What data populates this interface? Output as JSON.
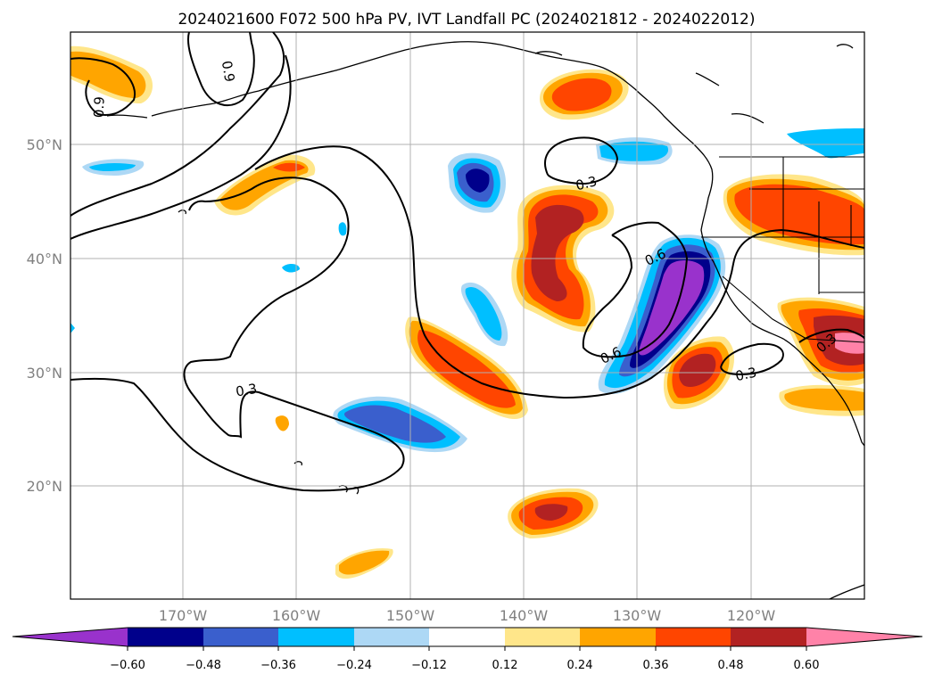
{
  "title": "2024021600 F072 500 hPa PV, IVT Landfall PC (2024021812 - 2024022012)",
  "map": {
    "longitude_labels": [
      "170°W",
      "160°W",
      "150°W",
      "140°W",
      "130°W",
      "120°W"
    ],
    "latitude_labels": [
      "50°N",
      "40°N",
      "30°N",
      "20°N"
    ],
    "contour_labels": [
      "0.9",
      "0.9",
      "0.3",
      "0.3",
      "0.6",
      "0.6",
      "0.3",
      "0.3"
    ]
  },
  "colorbar": {
    "ticks": [
      "−0.60",
      "−0.48",
      "−0.36",
      "−0.24",
      "−0.12",
      "0.12",
      "0.24",
      "0.36",
      "0.48",
      "0.60"
    ],
    "colors": [
      "#9932cc",
      "#00008b",
      "#3a5fcd",
      "#00bfff",
      "#add8f5",
      "#ffffff",
      "#ffe68a",
      "#ffa500",
      "#ff4500",
      "#b22222",
      "#ff82a8"
    ]
  },
  "colors": {
    "neg_strong": "#9932cc",
    "neg_dark": "#00008b",
    "neg_mid": "#3a5fcd",
    "neg_light": "#00bfff",
    "neg_pale": "#add8f5",
    "pos_pale": "#ffe68a",
    "pos_light": "#ffa500",
    "pos_mid": "#ff4500",
    "pos_dark": "#b22222",
    "pos_strong": "#ff82a8",
    "grid": "#b0b0b0",
    "tick_label": "#808080"
  }
}
